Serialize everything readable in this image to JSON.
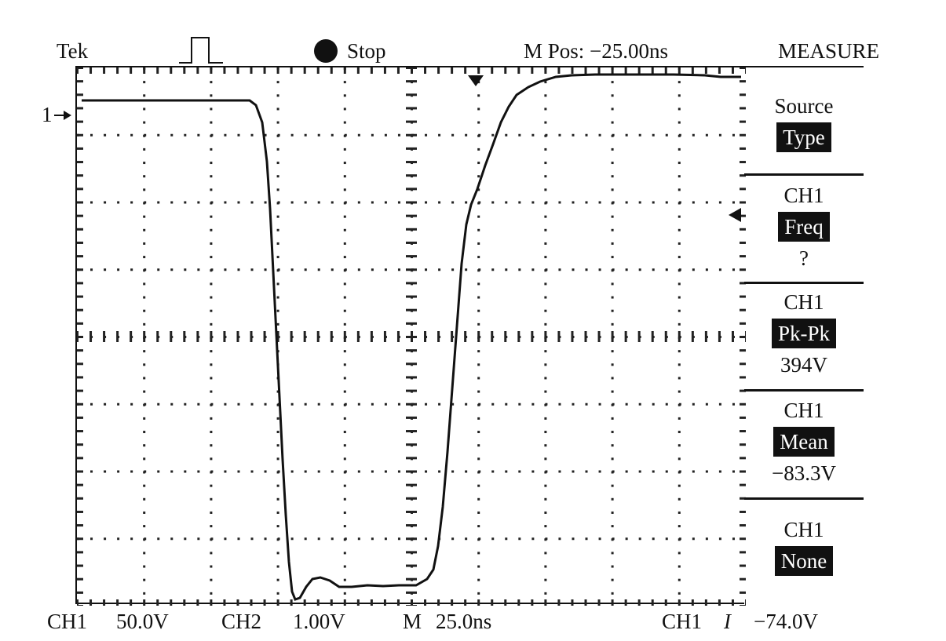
{
  "header": {
    "brand": "Tek",
    "status": "Stop",
    "horizontal_position": "M Pos: −25.00ns",
    "menu_title": "MEASURE"
  },
  "icons": {
    "trigger_mode": "pulse-icon",
    "run_state": "filled-circle-icon"
  },
  "screen": {
    "channel_marker": "1",
    "grid": {
      "divisions_x": 10,
      "divisions_y": 8
    }
  },
  "measure_menu": [
    {
      "label": "Source",
      "value": "Type",
      "reading": ""
    },
    {
      "label": "CH1",
      "value": "Freq",
      "reading": "?"
    },
    {
      "label": "CH1",
      "value": "Pk-Pk",
      "reading": "394V"
    },
    {
      "label": "CH1",
      "value": "Mean",
      "reading": "−83.3V"
    },
    {
      "label": "CH1",
      "value": "None",
      "reading": ""
    }
  ],
  "footer": {
    "ch1_label": "CH1",
    "ch1_scale": "50.0V",
    "ch2_label": "CH2",
    "ch2_scale": "1.00V",
    "time_label": "M",
    "time_scale": "25.0ns",
    "trigger_source": "CH1",
    "trigger_slope_symbol": "I",
    "trigger_level": "−74.0V"
  },
  "colors": {
    "trace": "#111111",
    "background": "#ffffff",
    "highlight_bg": "#111111",
    "highlight_text": "#ffffff"
  }
}
